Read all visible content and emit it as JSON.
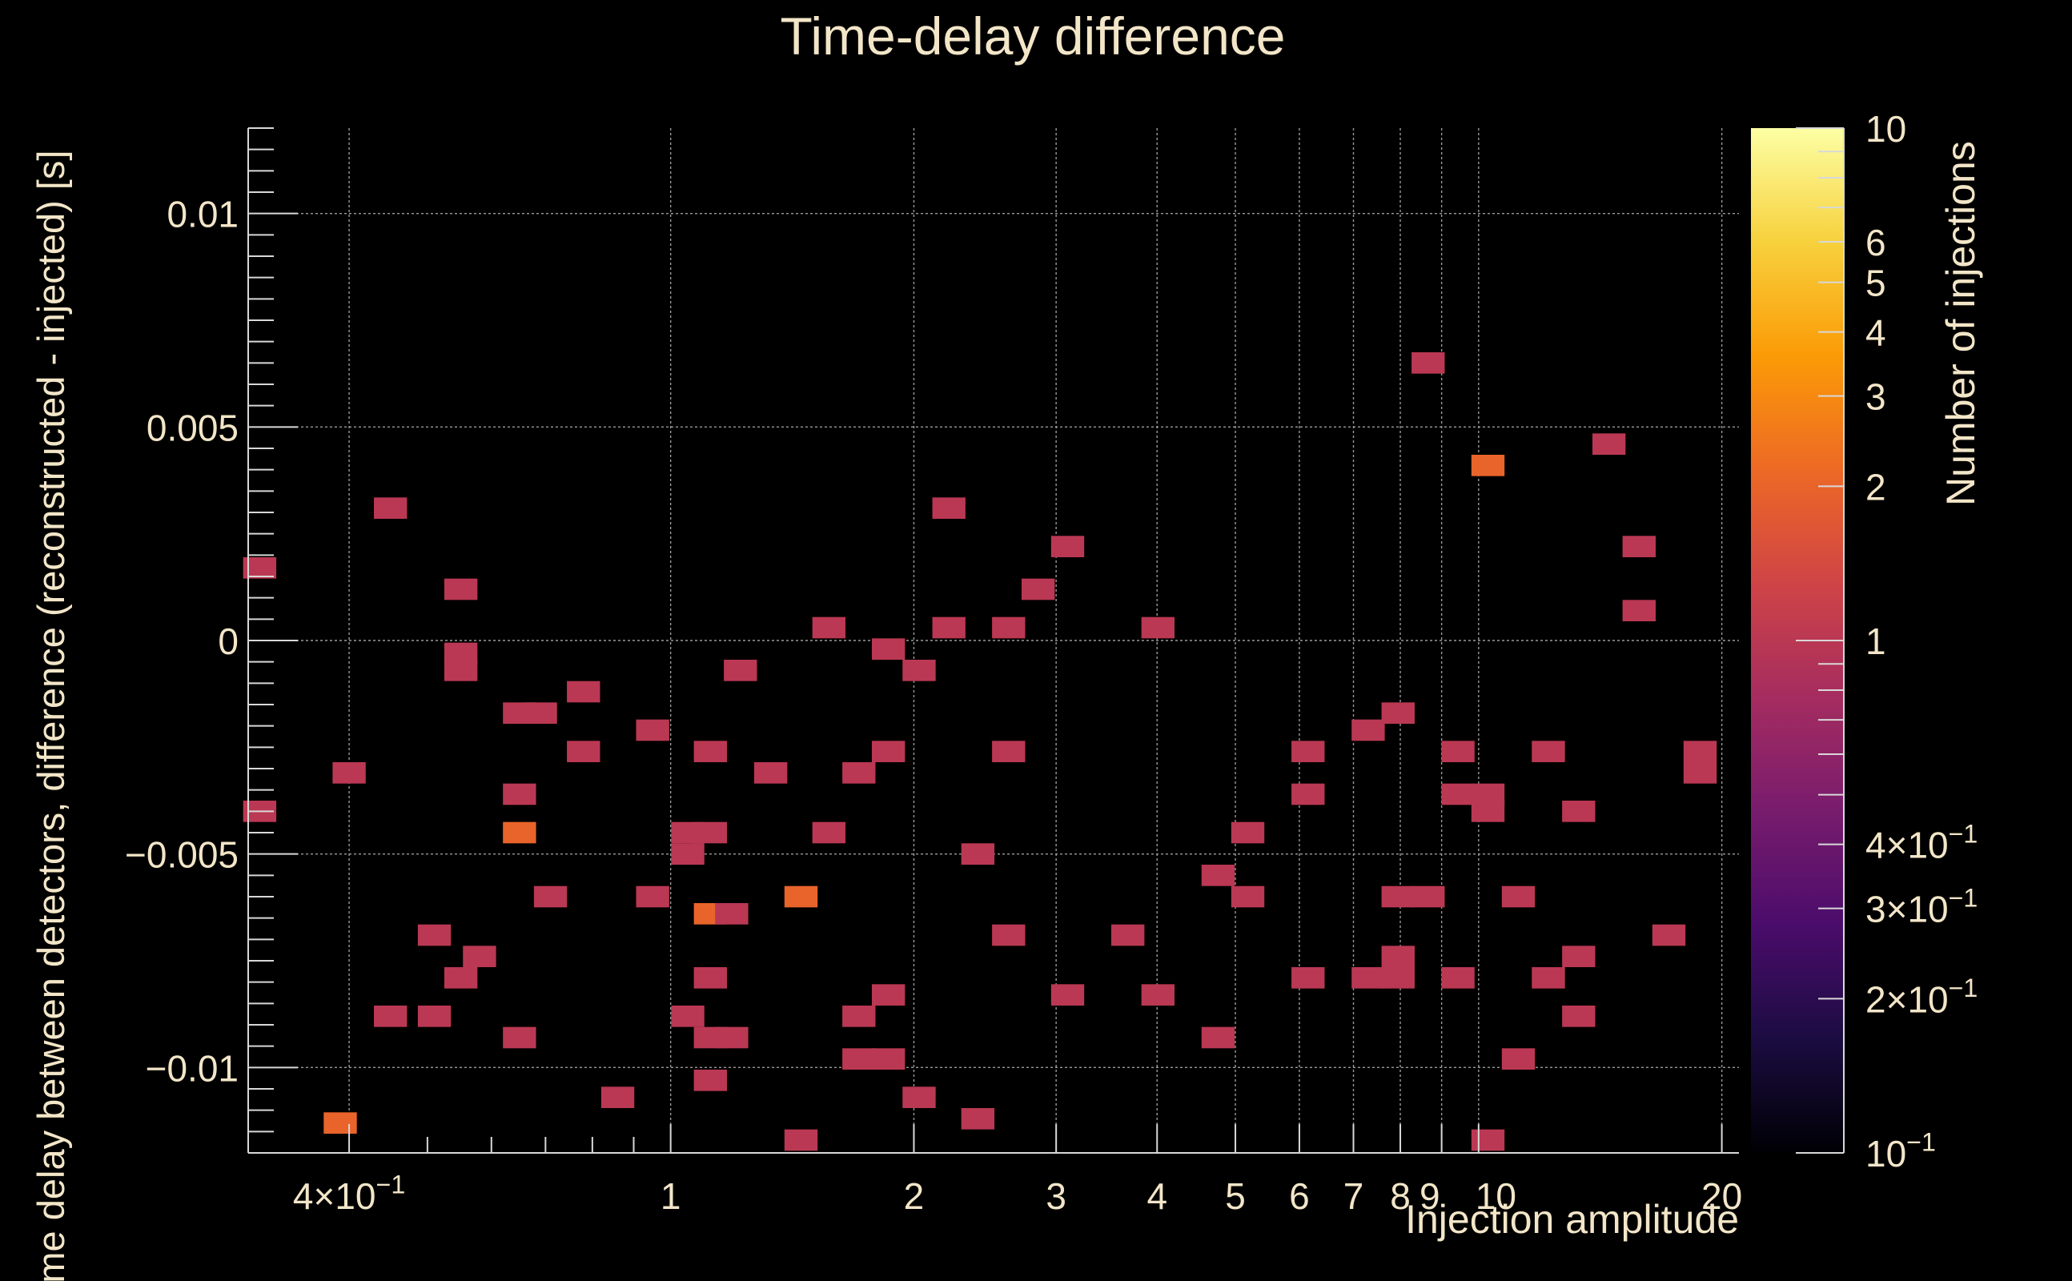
{
  "chart_data": {
    "type": "heatmap",
    "title": "Time-delay difference",
    "xlabel": "Injection amplitude",
    "ylabel": "Time delay between detectors, difference (reconstructed - injected) [s]",
    "zlabel": "Number of injections",
    "x_scale": "log",
    "y_scale": "linear",
    "z_scale": "log",
    "xlim": [
      0.3,
      21
    ],
    "ylim": [
      -0.012,
      0.012
    ],
    "zlim": [
      0.1,
      10
    ],
    "grid": true,
    "colormap": [
      "#000004",
      "#1b0c41",
      "#4a0c6b",
      "#781c6d",
      "#a52c60",
      "#cf4446",
      "#ed6925",
      "#fb9b06",
      "#f7d13d",
      "#fcffa4"
    ],
    "x_ticks": [
      {
        "value": 0.4,
        "label": "4×10",
        "exp": "−1"
      },
      {
        "value": 1,
        "label": "1"
      },
      {
        "value": 2,
        "label": "2"
      },
      {
        "value": 3,
        "label": "3"
      },
      {
        "value": 4,
        "label": "4"
      },
      {
        "value": 5,
        "label": "5"
      },
      {
        "value": 6,
        "label": "6"
      },
      {
        "value": 7,
        "label": "7"
      },
      {
        "value": 8,
        "label": "8"
      },
      {
        "value": 9,
        "label": "9"
      },
      {
        "value": 10,
        "label": "10"
      },
      {
        "value": 20,
        "label": "20"
      }
    ],
    "y_ticks": [
      {
        "value": 0.01,
        "label": "0.01"
      },
      {
        "value": 0.005,
        "label": "0.005"
      },
      {
        "value": 0,
        "label": "0"
      },
      {
        "value": -0.005,
        "label": "−0.005"
      },
      {
        "value": -0.01,
        "label": "−0.01"
      }
    ],
    "z_ticks": [
      {
        "value": 10,
        "label": "10"
      },
      {
        "value": 6,
        "label": "6"
      },
      {
        "value": 5,
        "label": "5"
      },
      {
        "value": 4,
        "label": "4"
      },
      {
        "value": 3,
        "label": "3"
      },
      {
        "value": 2,
        "label": "2"
      },
      {
        "value": 1,
        "label": "1"
      },
      {
        "value": 0.4,
        "label": "4×10",
        "exp": "−1"
      },
      {
        "value": 0.3,
        "label": "3×10",
        "exp": "−1"
      },
      {
        "value": 0.2,
        "label": "2×10",
        "exp": "−1"
      },
      {
        "value": 0.1,
        "label": "10",
        "exp": "−1"
      }
    ],
    "cells": [
      {
        "x": 0.31,
        "y": 0.0017,
        "count": 1
      },
      {
        "x": 0.31,
        "y": -0.004,
        "count": 1
      },
      {
        "x": 0.39,
        "y": -0.0113,
        "count": 2
      },
      {
        "x": 0.4,
        "y": -0.0031,
        "count": 1
      },
      {
        "x": 0.45,
        "y": 0.0031,
        "count": 1
      },
      {
        "x": 0.45,
        "y": -0.0088,
        "count": 1
      },
      {
        "x": 0.51,
        "y": -0.0069,
        "count": 1
      },
      {
        "x": 0.51,
        "y": -0.0088,
        "count": 1
      },
      {
        "x": 0.55,
        "y": 0.0012,
        "count": 1
      },
      {
        "x": 0.55,
        "y": -0.0003,
        "count": 1
      },
      {
        "x": 0.55,
        "y": -0.0007,
        "count": 1
      },
      {
        "x": 0.55,
        "y": -0.0079,
        "count": 1
      },
      {
        "x": 0.58,
        "y": -0.0074,
        "count": 1
      },
      {
        "x": 0.65,
        "y": -0.0017,
        "count": 1
      },
      {
        "x": 0.65,
        "y": -0.0036,
        "count": 1
      },
      {
        "x": 0.65,
        "y": -0.0045,
        "count": 2
      },
      {
        "x": 0.65,
        "y": -0.0093,
        "count": 1
      },
      {
        "x": 0.69,
        "y": -0.0017,
        "count": 1
      },
      {
        "x": 0.71,
        "y": -0.006,
        "count": 1
      },
      {
        "x": 0.78,
        "y": -0.0012,
        "count": 1
      },
      {
        "x": 0.78,
        "y": -0.0026,
        "count": 1
      },
      {
        "x": 0.86,
        "y": -0.0107,
        "count": 1
      },
      {
        "x": 0.95,
        "y": -0.0021,
        "count": 1
      },
      {
        "x": 0.95,
        "y": -0.006,
        "count": 1
      },
      {
        "x": 1.05,
        "y": -0.0045,
        "count": 1
      },
      {
        "x": 1.05,
        "y": -0.005,
        "count": 1
      },
      {
        "x": 1.05,
        "y": -0.0088,
        "count": 1
      },
      {
        "x": 1.12,
        "y": -0.0026,
        "count": 1
      },
      {
        "x": 1.12,
        "y": -0.0045,
        "count": 1
      },
      {
        "x": 1.12,
        "y": -0.0064,
        "count": 2
      },
      {
        "x": 1.12,
        "y": -0.0079,
        "count": 1
      },
      {
        "x": 1.12,
        "y": -0.0093,
        "count": 1
      },
      {
        "x": 1.12,
        "y": -0.0103,
        "count": 1
      },
      {
        "x": 1.19,
        "y": -0.0064,
        "count": 1
      },
      {
        "x": 1.19,
        "y": -0.0093,
        "count": 1
      },
      {
        "x": 1.22,
        "y": -0.0007,
        "count": 1
      },
      {
        "x": 1.33,
        "y": -0.0031,
        "count": 1
      },
      {
        "x": 1.45,
        "y": -0.006,
        "count": 2
      },
      {
        "x": 1.45,
        "y": -0.0117,
        "count": 1
      },
      {
        "x": 1.57,
        "y": 0.0003,
        "count": 1
      },
      {
        "x": 1.57,
        "y": -0.0045,
        "count": 1
      },
      {
        "x": 1.71,
        "y": -0.0031,
        "count": 1
      },
      {
        "x": 1.71,
        "y": -0.0088,
        "count": 1
      },
      {
        "x": 1.71,
        "y": -0.0098,
        "count": 1
      },
      {
        "x": 1.86,
        "y": -0.0002,
        "count": 1
      },
      {
        "x": 1.86,
        "y": -0.0026,
        "count": 1
      },
      {
        "x": 1.86,
        "y": -0.0083,
        "count": 1
      },
      {
        "x": 1.86,
        "y": -0.0098,
        "count": 1
      },
      {
        "x": 2.03,
        "y": -0.0007,
        "count": 1
      },
      {
        "x": 2.03,
        "y": -0.0107,
        "count": 1
      },
      {
        "x": 2.21,
        "y": 0.0031,
        "count": 1
      },
      {
        "x": 2.21,
        "y": 0.0003,
        "count": 1
      },
      {
        "x": 2.4,
        "y": -0.005,
        "count": 1
      },
      {
        "x": 2.4,
        "y": -0.0112,
        "count": 1
      },
      {
        "x": 2.62,
        "y": 0.0003,
        "count": 1
      },
      {
        "x": 2.62,
        "y": -0.0026,
        "count": 1
      },
      {
        "x": 2.62,
        "y": -0.0069,
        "count": 1
      },
      {
        "x": 2.85,
        "y": 0.0012,
        "count": 1
      },
      {
        "x": 3.1,
        "y": 0.0022,
        "count": 1
      },
      {
        "x": 3.1,
        "y": -0.0083,
        "count": 1
      },
      {
        "x": 3.68,
        "y": -0.0069,
        "count": 1
      },
      {
        "x": 4.01,
        "y": 0.0003,
        "count": 1
      },
      {
        "x": 4.01,
        "y": -0.0083,
        "count": 1
      },
      {
        "x": 4.76,
        "y": -0.0055,
        "count": 1
      },
      {
        "x": 4.76,
        "y": -0.0093,
        "count": 1
      },
      {
        "x": 5.18,
        "y": -0.0045,
        "count": 1
      },
      {
        "x": 5.18,
        "y": -0.006,
        "count": 1
      },
      {
        "x": 6.15,
        "y": -0.0026,
        "count": 1
      },
      {
        "x": 6.15,
        "y": -0.0036,
        "count": 1
      },
      {
        "x": 6.15,
        "y": -0.0079,
        "count": 1
      },
      {
        "x": 7.3,
        "y": -0.0021,
        "count": 1
      },
      {
        "x": 7.3,
        "y": -0.0079,
        "count": 1
      },
      {
        "x": 7.95,
        "y": -0.0017,
        "count": 1
      },
      {
        "x": 7.95,
        "y": -0.006,
        "count": 1
      },
      {
        "x": 7.95,
        "y": -0.0074,
        "count": 1
      },
      {
        "x": 7.95,
        "y": -0.0079,
        "count": 1
      },
      {
        "x": 8.66,
        "y": 0.0065,
        "count": 1
      },
      {
        "x": 8.66,
        "y": -0.006,
        "count": 1
      },
      {
        "x": 9.43,
        "y": -0.0026,
        "count": 1
      },
      {
        "x": 9.43,
        "y": -0.0036,
        "count": 1
      },
      {
        "x": 9.43,
        "y": -0.0079,
        "count": 1
      },
      {
        "x": 10.27,
        "y": 0.0041,
        "count": 2
      },
      {
        "x": 10.27,
        "y": -0.0036,
        "count": 1
      },
      {
        "x": 10.27,
        "y": -0.004,
        "count": 1
      },
      {
        "x": 10.27,
        "y": -0.0117,
        "count": 1
      },
      {
        "x": 11.2,
        "y": -0.006,
        "count": 1
      },
      {
        "x": 11.2,
        "y": -0.0098,
        "count": 1
      },
      {
        "x": 12.2,
        "y": -0.0026,
        "count": 1
      },
      {
        "x": 12.2,
        "y": -0.0079,
        "count": 1
      },
      {
        "x": 13.3,
        "y": -0.004,
        "count": 1
      },
      {
        "x": 13.3,
        "y": -0.0074,
        "count": 1
      },
      {
        "x": 13.3,
        "y": -0.0088,
        "count": 1
      },
      {
        "x": 14.5,
        "y": 0.0046,
        "count": 1
      },
      {
        "x": 15.8,
        "y": 0.0022,
        "count": 1
      },
      {
        "x": 15.8,
        "y": 0.0007,
        "count": 1
      },
      {
        "x": 17.2,
        "y": -0.0069,
        "count": 1
      },
      {
        "x": 18.8,
        "y": -0.0026,
        "count": 1
      },
      {
        "x": 18.8,
        "y": -0.0031,
        "count": 1
      }
    ]
  }
}
